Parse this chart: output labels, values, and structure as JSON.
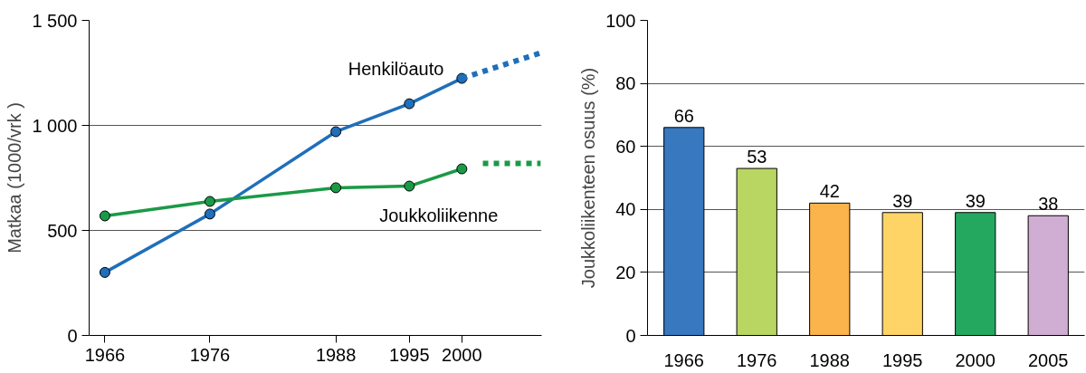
{
  "chart_data": [
    {
      "type": "line",
      "ylabel": "Matkaa (1000/vrk )",
      "xlim": [
        1964.5,
        2007.6
      ],
      "xticks": [
        1966,
        1976,
        1988,
        1995,
        2000
      ],
      "ylim": [
        0,
        1500
      ],
      "yticks": [
        0,
        500,
        {
          "value": 1000,
          "label": "1 000"
        },
        {
          "value": 1500,
          "label": "1 500"
        }
      ],
      "grid": "y",
      "marker": "circle",
      "line_style": "solid",
      "x": [
        1966,
        1976,
        1988,
        1995,
        2000
      ],
      "series": [
        {
          "name": "Henkilöauto",
          "color": "#1f6fba",
          "values": [
            300,
            578,
            970,
            1103,
            1224
          ]
        },
        {
          "name": "Joukkoliikenne",
          "color": "#1a9a46",
          "values": [
            569,
            638,
            703,
            711,
            793
          ]
        },
        {
          "color": "#1f6fba",
          "x": [
            2000,
            2007.5
          ],
          "values": [
            1224,
            1345
          ],
          "line_style": "dashed",
          "marker": "none"
        },
        {
          "color": "#1a9a46",
          "x": [
            2002,
            2007.5
          ],
          "values": [
            819,
            819
          ],
          "line_style": "dashed",
          "marker": "none"
        }
      ]
    },
    {
      "type": "bar",
      "ylabel": "Joukkoliikenteen osuus (%)",
      "categories": [
        "1966",
        "1976",
        "1988",
        "1995",
        "2000",
        "2005"
      ],
      "values": [
        66,
        53,
        42,
        39,
        39,
        38
      ],
      "colors": [
        "#3778bf",
        "#b9d662",
        "#fbb34c",
        "#ffd466",
        "#24a860",
        "#d0aed3"
      ],
      "ylim": [
        0,
        100
      ],
      "yticks": [
        0,
        20,
        40,
        60,
        80,
        100
      ],
      "grid": "y",
      "data_labels": true
    }
  ]
}
